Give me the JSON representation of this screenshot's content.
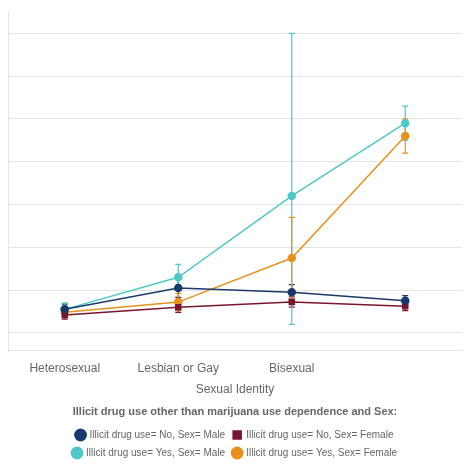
{
  "chart_data": {
    "type": "line",
    "xlabel": "Sexual Identity",
    "categories": [
      "Heterosexual",
      "Lesbian or Gay",
      "Bisexual",
      null
    ],
    "series": [
      {
        "name": "Illicit drug use= No, Sex= Male",
        "color": "#1a3a6b",
        "marker": "circle",
        "values": [
          0.055,
          0.105,
          0.095,
          0.075
        ],
        "yerr_lo": [
          0.012,
          0.022,
          0.018,
          0.012
        ],
        "yerr_hi": [
          0.012,
          0.022,
          0.018,
          0.012
        ]
      },
      {
        "name": "Illicit drug use= No, Sex= Female",
        "color": "#7a1530",
        "marker": "square",
        "values": [
          0.042,
          0.06,
          0.072,
          0.062
        ],
        "yerr_lo": [
          0.01,
          0.012,
          0.012,
          0.01
        ],
        "yerr_hi": [
          0.01,
          0.012,
          0.012,
          0.01
        ]
      },
      {
        "name": "Illicit drug use= Yes, Sex= Male",
        "color": "#50c8c8",
        "marker": "circle",
        "values": [
          0.055,
          0.13,
          0.32,
          0.49
        ],
        "yerr_lo": [
          0.015,
          0.03,
          0.3,
          0.04
        ],
        "yerr_hi": [
          0.015,
          0.03,
          0.38,
          0.04
        ]
      },
      {
        "name": "Illicit drug use= Yes, Sex= Female",
        "color": "#e8921e",
        "marker": "circle",
        "values": [
          0.048,
          0.072,
          0.175,
          0.46
        ],
        "yerr_lo": [
          0.012,
          0.02,
          0.095,
          0.04
        ],
        "yerr_hi": [
          0.012,
          0.02,
          0.095,
          0.04
        ]
      }
    ],
    "ylim": [
      -0.04,
      0.75
    ],
    "yticks": [
      0.0,
      0.1,
      0.2,
      0.3,
      0.4,
      0.5,
      0.6,
      0.7
    ],
    "grid": true,
    "tick_labels": "x",
    "legend": "bottom",
    "legend_title": "Illicit drug use other than marijuana use dependence and Sex:"
  }
}
